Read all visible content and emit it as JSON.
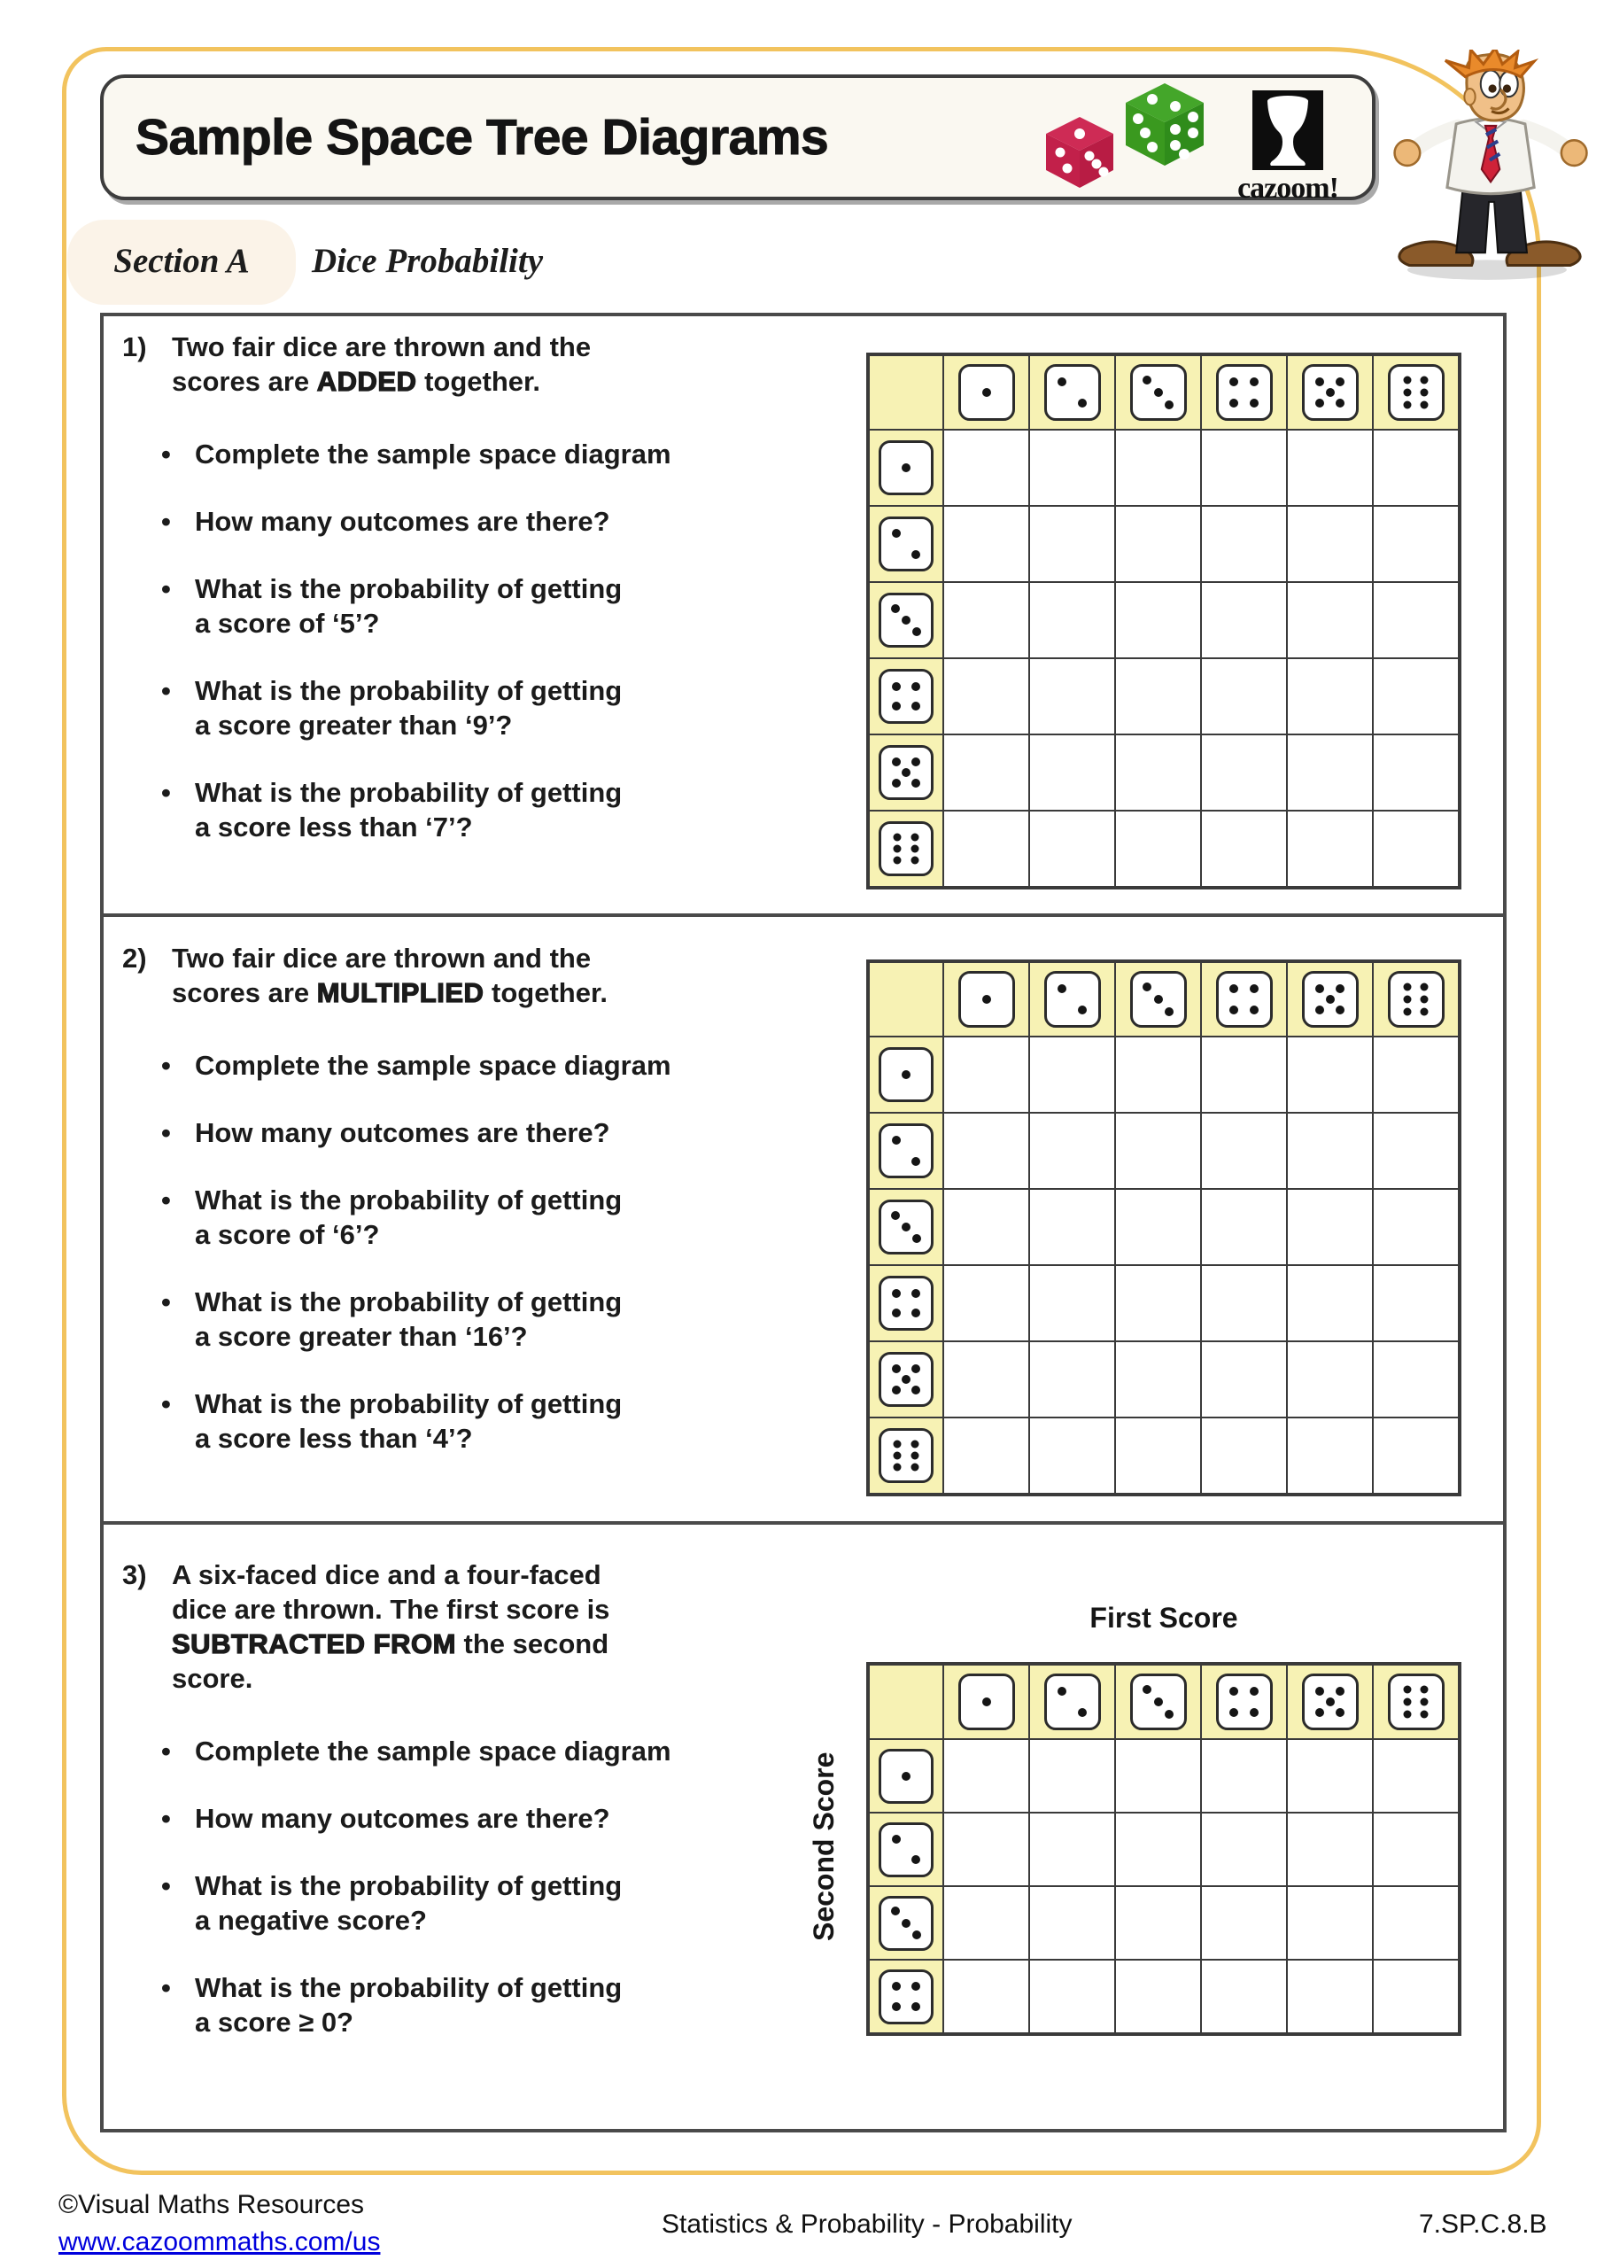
{
  "header": {
    "title": "Sample Space Tree Diagrams",
    "brand": {
      "logo_text": "cazoom!"
    }
  },
  "section": {
    "label": "Section A",
    "topic": "Dice Probability"
  },
  "bullet_char": "•",
  "questions": [
    {
      "number": "1)",
      "intro_line1": "Two fair dice are thrown and the",
      "intro_line2_pre": "scores are ",
      "intro_line2_emph": "ADDED",
      "intro_line2_post": " together.",
      "bullets": [
        {
          "line1": "Complete the sample space diagram"
        },
        {
          "line1": "How many outcomes are there?"
        },
        {
          "line1": "What is the probability of getting",
          "line2": "a score of ‘5’?"
        },
        {
          "line1": "What is the probability of getting",
          "line2": "a score greater than ‘9’?"
        },
        {
          "line1": "What is the probability of getting",
          "line2": "a score less than ‘7’?"
        }
      ]
    },
    {
      "number": "2)",
      "intro_line1": "Two fair dice are thrown and the",
      "intro_line2_pre": "scores are ",
      "intro_line2_emph": "MULTIPLIED",
      "intro_line2_post": " together.",
      "bullets": [
        {
          "line1": "Complete the sample space diagram"
        },
        {
          "line1": "How many outcomes are there?"
        },
        {
          "line1": "What is the probability of getting",
          "line2": "a score of ‘6’?"
        },
        {
          "line1": "What is the probability of getting",
          "line2": "a score greater than ‘16’?"
        },
        {
          "line1": "What is the probability of getting",
          "line2": "a score less than ‘4’?"
        }
      ]
    },
    {
      "number": "3)",
      "intro_line1": "A six-faced dice and a four-faced",
      "intro_line2": "dice are thrown. The first score is",
      "intro_line3_emph": "SUBTRACTED FROM",
      "intro_line3_post": " the second",
      "intro_line4": "score.",
      "bullets": [
        {
          "line1": "Complete the sample space diagram"
        },
        {
          "line1": "How many outcomes are there?"
        },
        {
          "line1": "What is the probability of getting",
          "line2": "a negative score?"
        },
        {
          "line1": "What is the probability of getting",
          "line2": "a score ≥ 0?"
        }
      ]
    }
  ],
  "grids": [
    {
      "col_dice": [
        1,
        2,
        3,
        4,
        5,
        6
      ],
      "row_dice": [
        1,
        2,
        3,
        4,
        5,
        6
      ]
    },
    {
      "col_dice": [
        1,
        2,
        3,
        4,
        5,
        6
      ],
      "row_dice": [
        1,
        2,
        3,
        4,
        5,
        6
      ]
    },
    {
      "col_dice": [
        1,
        2,
        3,
        4,
        5,
        6
      ],
      "row_dice": [
        1,
        2,
        3,
        4
      ],
      "x_label": "First Score",
      "y_label": "Second Score"
    }
  ],
  "footer": {
    "copyright": "©Visual Maths Resources",
    "link": "www.cazoommaths.com/us",
    "center": "Statistics & Probability - Probability",
    "code": "7.SP.C.8.B"
  },
  "colors": {
    "frame_orange": "#F2C35E",
    "grid_header_yellow": "#F7F2B4",
    "link_blue": "#0000DD",
    "logo_die_red": "#C2204A",
    "logo_die_green": "#379B1F"
  }
}
